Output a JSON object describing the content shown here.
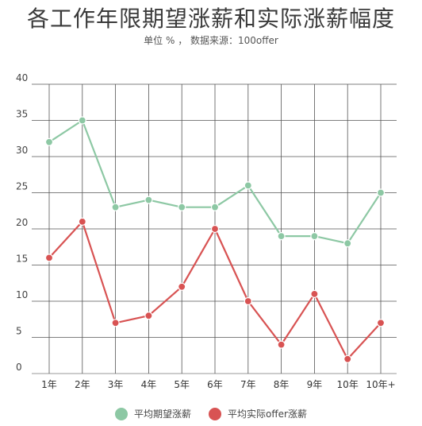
{
  "chart_data": {
    "type": "line",
    "title": "各工作年限期望涨薪和实际涨薪幅度",
    "subtitle": "单位 % ， 数据来源：100offer",
    "categories": [
      "1年",
      "2年",
      "3年",
      "4年",
      "5年",
      "6年",
      "7年",
      "8年",
      "9年",
      "10年",
      "10年+"
    ],
    "series": [
      {
        "name": "平均期望涨薪",
        "color": "#8dc8a4",
        "values": [
          32,
          35,
          23,
          24,
          23,
          23,
          26,
          19,
          19,
          18,
          25
        ]
      },
      {
        "name": "平均实际offer涨薪",
        "color": "#d85353",
        "values": [
          16,
          21,
          7,
          8,
          12,
          20,
          10,
          4,
          11,
          2,
          7
        ]
      }
    ],
    "yticks": [
      0,
      5,
      10,
      15,
      20,
      25,
      30,
      35,
      40
    ],
    "ylim": [
      0,
      40
    ],
    "grid": true,
    "legend": "bottom"
  }
}
